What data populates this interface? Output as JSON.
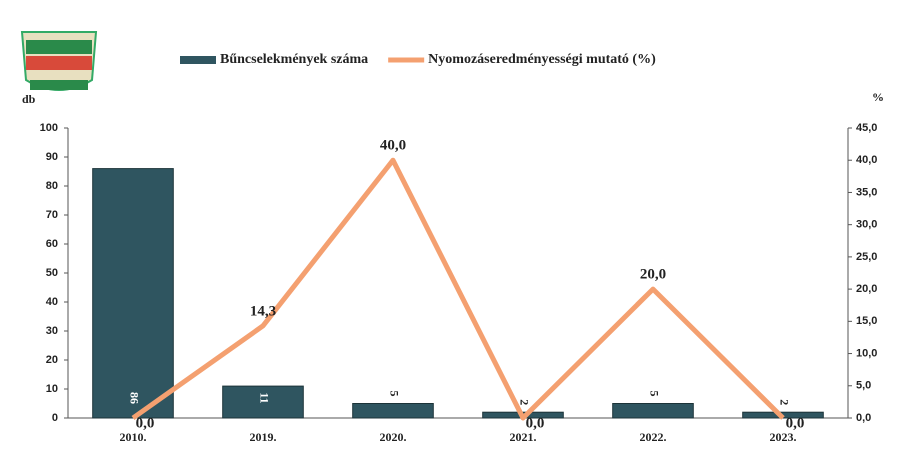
{
  "chart_data": {
    "type": "bar",
    "categories": [
      "2010.",
      "2019.",
      "2020.",
      "2021.",
      "2022.",
      "2023."
    ],
    "series": [
      {
        "name": "Bűncselekmények száma",
        "type": "bar",
        "color": "#2f5560",
        "values": [
          86,
          11,
          5,
          2,
          5,
          2
        ]
      },
      {
        "name": "Nyomozáseredményességi mutató (%)",
        "type": "line",
        "axis": "y2",
        "color": "#f4a070",
        "values": [
          0,
          14.3,
          40,
          0,
          20,
          0
        ],
        "value_labels": [
          "0,0",
          "14,3",
          "40,0",
          "0,0",
          "20,0",
          "0,0"
        ]
      }
    ],
    "ylabel": "db",
    "y2label": "%",
    "ylim": [
      0,
      100
    ],
    "yticks": [
      0,
      10,
      20,
      30,
      40,
      50,
      60,
      70,
      80,
      90,
      100
    ],
    "y2lim": [
      0,
      45
    ],
    "y2ticks": [
      {
        "value": 0,
        "label": "0,0"
      },
      {
        "value": 5,
        "label": "5,0"
      },
      {
        "value": 10,
        "label": "10,0"
      },
      {
        "value": 15,
        "label": "15,0"
      },
      {
        "value": 20,
        "label": "20,0"
      },
      {
        "value": 25,
        "label": "25,0"
      },
      {
        "value": 30,
        "label": "30,0"
      },
      {
        "value": 35,
        "label": "35,0"
      },
      {
        "value": 40,
        "label": "40,0"
      },
      {
        "value": 45,
        "label": "45,0"
      }
    ],
    "legend": "top"
  }
}
